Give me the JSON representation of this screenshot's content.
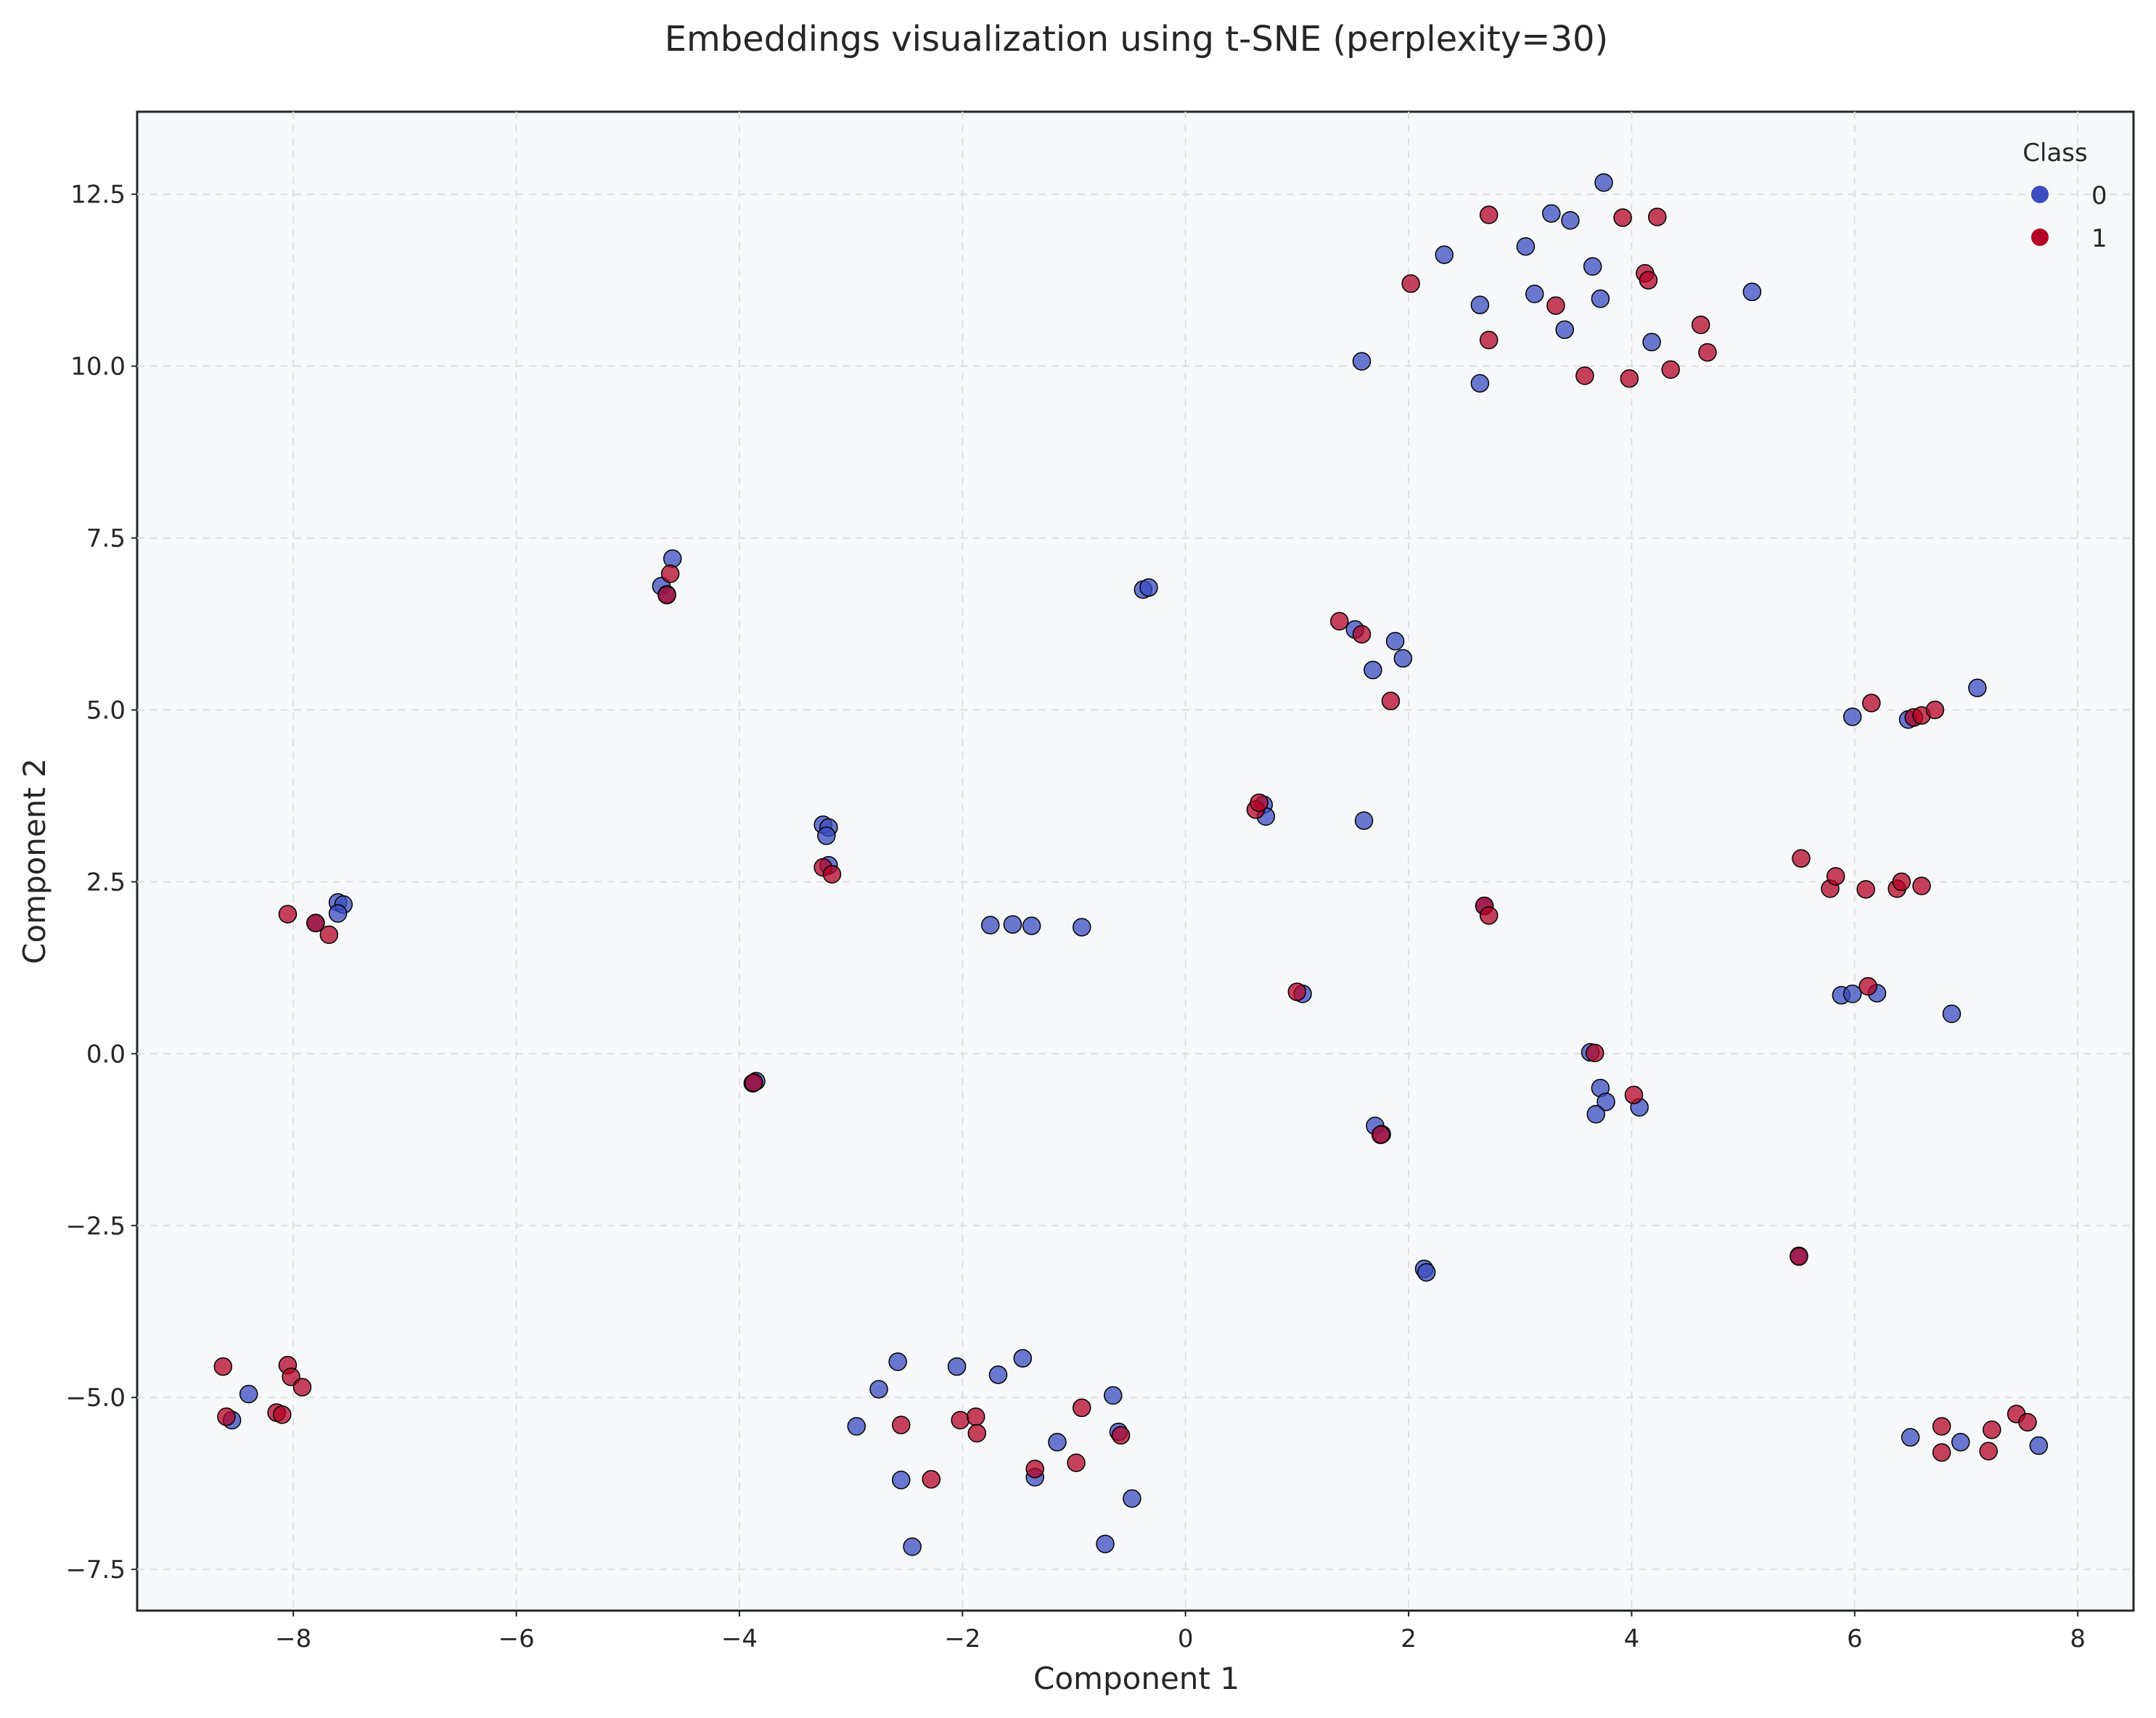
{
  "chart_data": {
    "type": "scatter",
    "title": "Embeddings visualization using t-SNE (perplexity=30)",
    "xlabel": "Component 1",
    "ylabel": "Component 2",
    "xlim": [
      -9.4,
      8.5
    ],
    "ylim": [
      -8.1,
      13.7
    ],
    "x_ticks": [
      -8,
      -6,
      -4,
      -2,
      0,
      2,
      4,
      6,
      8
    ],
    "x_tick_labels": [
      "−8",
      "−6",
      "−4",
      "−2",
      "0",
      "2",
      "4",
      "6",
      "8"
    ],
    "y_ticks": [
      -7.5,
      -5.0,
      -2.5,
      0.0,
      2.5,
      5.0,
      7.5,
      10.0,
      12.5
    ],
    "y_tick_labels": [
      "−7.5",
      "−5.0",
      "−2.5",
      "0.0",
      "2.5",
      "5.0",
      "7.5",
      "10.0",
      "12.5"
    ],
    "grid": true,
    "legend": {
      "title": "Class",
      "placement": "top-right"
    },
    "series": [
      {
        "name": "0",
        "color": "#3b4cc0",
        "points": [
          [
            -8.4,
            -4.95
          ],
          [
            -8.55,
            -5.33
          ],
          [
            -7.8,
            1.9
          ],
          [
            -7.6,
            2.2
          ],
          [
            -7.55,
            2.17
          ],
          [
            -7.6,
            2.04
          ],
          [
            -4.7,
            6.8
          ],
          [
            -4.6,
            7.2
          ],
          [
            -4.65,
            6.68
          ],
          [
            -3.85,
            -0.4
          ],
          [
            -3.88,
            -0.43
          ],
          [
            -3.25,
            3.33
          ],
          [
            -3.2,
            3.29
          ],
          [
            -3.22,
            3.17
          ],
          [
            -3.2,
            2.74
          ],
          [
            -2.95,
            -5.42
          ],
          [
            -2.75,
            -4.88
          ],
          [
            -2.58,
            -4.48
          ],
          [
            -2.55,
            -6.2
          ],
          [
            -2.45,
            -7.17
          ],
          [
            -2.05,
            -4.55
          ],
          [
            -1.75,
            1.87
          ],
          [
            -1.55,
            1.88
          ],
          [
            -1.38,
            1.86
          ],
          [
            -1.68,
            -4.67
          ],
          [
            -1.46,
            -4.43
          ],
          [
            -1.35,
            -6.16
          ],
          [
            -1.15,
            -5.65
          ],
          [
            -0.93,
            1.84
          ],
          [
            -0.72,
            -7.13
          ],
          [
            -0.65,
            -4.97
          ],
          [
            -0.6,
            -5.5
          ],
          [
            -0.48,
            -6.47
          ],
          [
            -0.38,
            6.75
          ],
          [
            -0.33,
            6.78
          ],
          [
            0.7,
            3.62
          ],
          [
            0.72,
            3.45
          ],
          [
            1.05,
            0.87
          ],
          [
            1.52,
            6.17
          ],
          [
            1.88,
            6.0
          ],
          [
            1.95,
            5.75
          ],
          [
            1.68,
            5.58
          ],
          [
            1.6,
            3.39
          ],
          [
            1.58,
            10.07
          ],
          [
            1.7,
            -1.05
          ],
          [
            1.76,
            -1.17
          ],
          [
            2.14,
            -3.13
          ],
          [
            2.16,
            -3.18
          ],
          [
            2.32,
            11.62
          ],
          [
            2.64,
            10.89
          ],
          [
            2.64,
            9.75
          ],
          [
            2.68,
            2.15
          ],
          [
            3.05,
            11.74
          ],
          [
            3.13,
            11.05
          ],
          [
            3.28,
            12.22
          ],
          [
            3.4,
            10.53
          ],
          [
            3.45,
            12.12
          ],
          [
            3.65,
            11.45
          ],
          [
            3.72,
            10.98
          ],
          [
            3.75,
            12.67
          ],
          [
            4.18,
            10.35
          ],
          [
            3.63,
            0.02
          ],
          [
            3.72,
            -0.5
          ],
          [
            3.77,
            -0.7
          ],
          [
            3.68,
            -0.88
          ],
          [
            4.07,
            -0.78
          ],
          [
            5.08,
            11.08
          ],
          [
            5.5,
            -2.94
          ],
          [
            5.98,
            4.9
          ],
          [
            6.48,
            4.86
          ],
          [
            5.88,
            0.85
          ],
          [
            5.98,
            0.87
          ],
          [
            6.2,
            0.88
          ],
          [
            7.1,
            5.32
          ],
          [
            6.87,
            0.58
          ],
          [
            6.5,
            -5.58
          ],
          [
            6.95,
            -5.65
          ],
          [
            7.65,
            -5.7
          ]
        ]
      },
      {
        "name": "1",
        "color": "#b40426",
        "points": [
          [
            -8.63,
            -4.55
          ],
          [
            -8.6,
            -5.28
          ],
          [
            -8.15,
            -5.22
          ],
          [
            -8.1,
            -5.25
          ],
          [
            -8.05,
            -4.53
          ],
          [
            -8.02,
            -4.7
          ],
          [
            -7.92,
            -4.85
          ],
          [
            -8.05,
            2.03
          ],
          [
            -7.8,
            1.9
          ],
          [
            -7.68,
            1.73
          ],
          [
            -4.62,
            6.98
          ],
          [
            -4.65,
            6.67
          ],
          [
            -3.87,
            -0.42
          ],
          [
            -3.25,
            2.71
          ],
          [
            -3.17,
            2.61
          ],
          [
            -2.55,
            -5.4
          ],
          [
            -2.28,
            -6.19
          ],
          [
            -2.02,
            -5.33
          ],
          [
            -1.88,
            -5.28
          ],
          [
            -1.87,
            -5.52
          ],
          [
            -1.35,
            -6.04
          ],
          [
            -0.98,
            -5.95
          ],
          [
            -0.93,
            -5.15
          ],
          [
            -0.58,
            -5.55
          ],
          [
            0.63,
            3.55
          ],
          [
            0.66,
            3.65
          ],
          [
            1.0,
            0.9
          ],
          [
            1.38,
            6.29
          ],
          [
            1.58,
            6.1
          ],
          [
            1.84,
            5.13
          ],
          [
            1.75,
            -1.18
          ],
          [
            2.02,
            11.2
          ],
          [
            2.68,
            2.15
          ],
          [
            2.72,
            2.01
          ],
          [
            2.72,
            10.38
          ],
          [
            2.72,
            12.2
          ],
          [
            3.32,
            10.88
          ],
          [
            3.58,
            9.86
          ],
          [
            3.92,
            12.16
          ],
          [
            3.98,
            9.82
          ],
          [
            4.12,
            11.35
          ],
          [
            4.15,
            11.25
          ],
          [
            4.23,
            12.17
          ],
          [
            4.35,
            9.95
          ],
          [
            4.62,
            10.6
          ],
          [
            4.68,
            10.2
          ],
          [
            3.67,
            0.01
          ],
          [
            4.02,
            -0.6
          ],
          [
            5.5,
            -2.95
          ],
          [
            5.52,
            2.84
          ],
          [
            5.78,
            2.4
          ],
          [
            5.83,
            2.58
          ],
          [
            6.1,
            2.39
          ],
          [
            6.38,
            2.4
          ],
          [
            6.42,
            2.5
          ],
          [
            6.6,
            2.44
          ],
          [
            6.15,
            5.1
          ],
          [
            6.53,
            4.89
          ],
          [
            6.6,
            4.92
          ],
          [
            6.72,
            5.0
          ],
          [
            6.12,
            0.98
          ],
          [
            6.78,
            -5.42
          ],
          [
            6.78,
            -5.8
          ],
          [
            7.2,
            -5.78
          ],
          [
            7.23,
            -5.47
          ],
          [
            7.45,
            -5.24
          ],
          [
            7.55,
            -5.36
          ]
        ]
      }
    ]
  }
}
